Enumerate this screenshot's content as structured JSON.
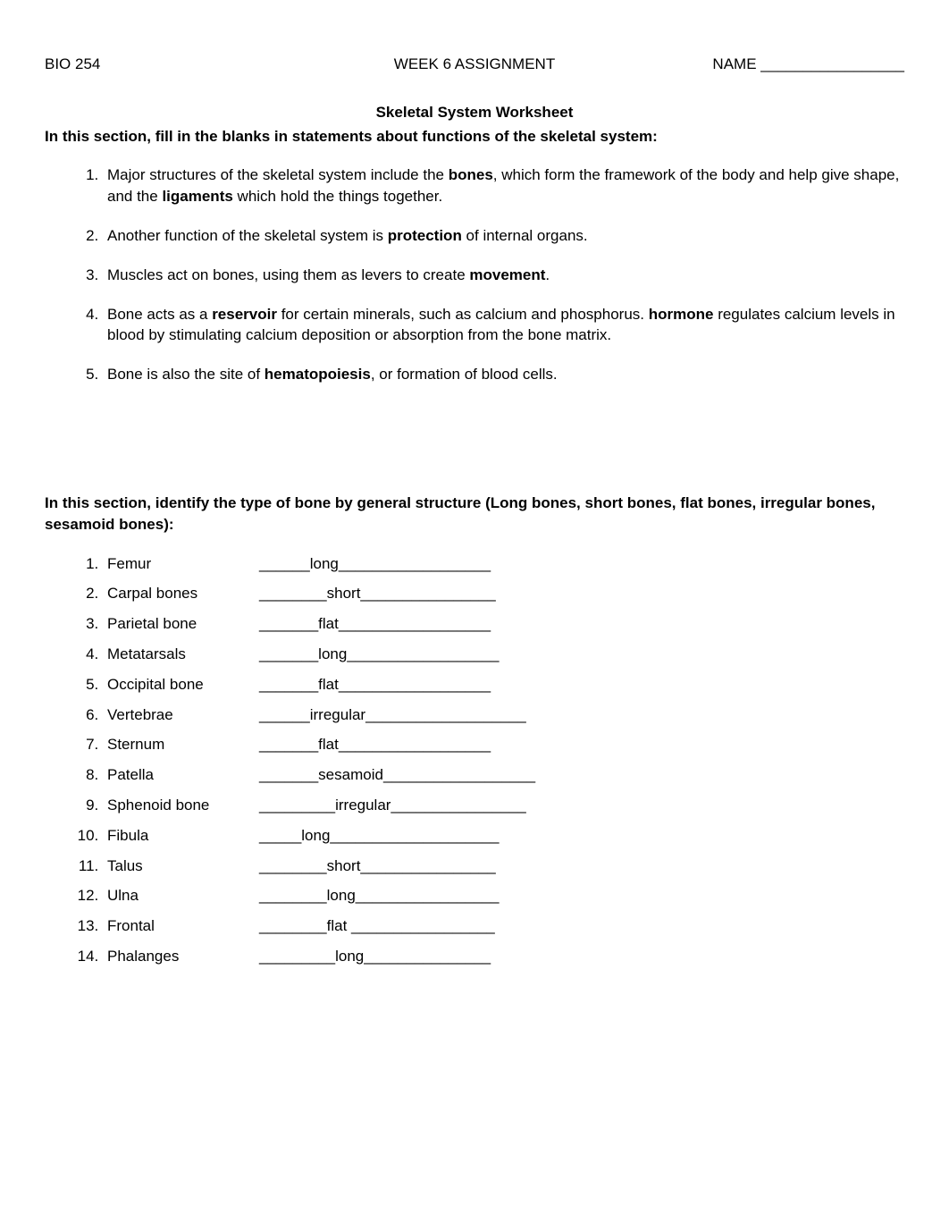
{
  "header": {
    "course": "BIO 254",
    "assignment": "WEEK 6 ASSIGNMENT",
    "name_label": "NAME"
  },
  "title": "Skeletal System Worksheet",
  "section1": {
    "intro": "In this section, fill in the blanks in statements about functions of the skeletal system:",
    "items": [
      {
        "pre1": "Major structures of the skeletal system include the ",
        "bold1": "bones",
        "mid1": ", which form the framework of the body and help give shape, and the ",
        "bold2": "ligaments",
        "post1": " which hold the things together."
      },
      {
        "pre1": "Another function of the skeletal system is ",
        "bold1": "protection",
        "post1": " of internal organs."
      },
      {
        "pre1": "Muscles act on bones, using them as levers to create ",
        "bold1": "movement",
        "post1": "."
      },
      {
        "pre1": "Bone acts as a ",
        "bold1": "reservoir",
        "mid1": " for certain minerals, such as calcium and phosphorus. ",
        "bold2": "hormone",
        "post1": " regulates calcium levels in blood by stimulating calcium deposition or absorption from the bone matrix."
      },
      {
        "pre1": "Bone is also the site of ",
        "bold1": "hematopoiesis",
        "post1": ", or formation of blood cells."
      }
    ]
  },
  "section2": {
    "intro": "In this section, identify the type of bone by general structure (Long bones, short bones, flat bones, irregular bones, sesamoid bones):",
    "bones": [
      {
        "name": "Femur",
        "answer": "______long__________________"
      },
      {
        "name": "Carpal bones",
        "answer": "________short________________"
      },
      {
        "name": "Parietal bone",
        "answer": "_______flat__________________"
      },
      {
        "name": "Metatarsals",
        "answer": "_______long__________________"
      },
      {
        "name": "Occipital bone",
        "answer": "_______flat__________________"
      },
      {
        "name": "Vertebrae",
        "answer": "______irregular___________________"
      },
      {
        "name": "Sternum",
        "answer": "_______flat__________________"
      },
      {
        "name": "Patella",
        "answer": "_______sesamoid__________________"
      },
      {
        "name": "Sphenoid bone",
        "answer": "_________irregular________________"
      },
      {
        "name": "Fibula",
        "answer": "_____long____________________"
      },
      {
        "name": "Talus",
        "answer": "________short________________"
      },
      {
        "name": "Ulna",
        "answer": "________long_________________"
      },
      {
        "name": "Frontal",
        "answer": "________flat _________________"
      },
      {
        "name": "Phalanges",
        "answer": "_________long_______________"
      }
    ]
  }
}
